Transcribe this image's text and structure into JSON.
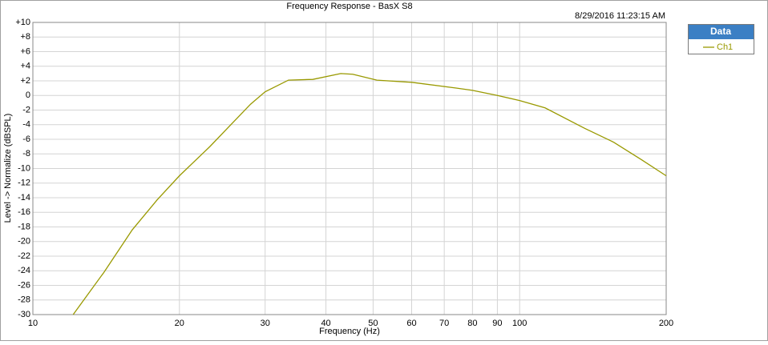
{
  "chart_data": {
    "type": "line",
    "title": "Frequency Response - BasX S8",
    "timestamp": "8/29/2016 11:23:15 AM",
    "xlabel": "Frequency (Hz)",
    "ylabel": "Level -> Normalize (dBSPL)",
    "legend_title": "Data",
    "legend": "right",
    "xscale": "log",
    "grid": true,
    "x": [
      12.1,
      14,
      16,
      18,
      20,
      23.1,
      26.2,
      28,
      30,
      33.5,
      37.6,
      42.9,
      45.4,
      50.9,
      60,
      74.3,
      80,
      90,
      100,
      112.8,
      136,
      156,
      178,
      200
    ],
    "series": [
      {
        "name": "Ch1",
        "color": "#999900",
        "values": [
          -30,
          -24.2,
          -18.4,
          -14.3,
          -11,
          -7,
          -3.2,
          -1.2,
          0.5,
          2.1,
          2.2,
          3,
          2.9,
          2.1,
          1.8,
          1,
          0.7,
          0,
          -0.7,
          -1.7,
          -4.5,
          -6.4,
          -8.8,
          -11
        ]
      }
    ],
    "xlim": [
      10,
      200
    ],
    "xticks": [
      10,
      20,
      30,
      40,
      50,
      60,
      70,
      80,
      90,
      100,
      200
    ],
    "ylim": [
      -30,
      10
    ],
    "yticks": [
      {
        "value": 10,
        "label": "+10"
      },
      {
        "value": 8,
        "label": "+8"
      },
      {
        "value": 6,
        "label": "+6"
      },
      {
        "value": 4,
        "label": "+4"
      },
      {
        "value": 2,
        "label": "+2"
      },
      0,
      -2,
      -4,
      -6,
      -8,
      -10,
      -12,
      -14,
      -16,
      -18,
      -20,
      -22,
      -24,
      -26,
      -28,
      -30
    ]
  }
}
